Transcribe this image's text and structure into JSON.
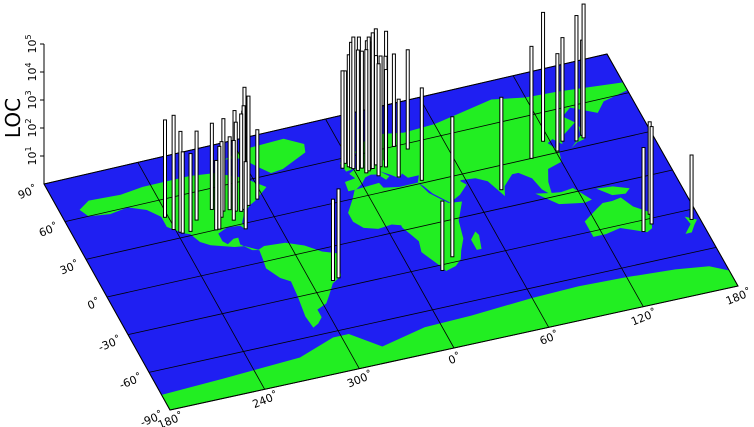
{
  "colors": {
    "ocean": "#1f1ff2",
    "land": "#22ee22",
    "grid": "#000000",
    "bars": "#000000"
  },
  "map": {
    "z_axis": {
      "title": "LOC",
      "ticks": [
        {
          "base": "10",
          "exp": "1"
        },
        {
          "base": "10",
          "exp": "2"
        },
        {
          "base": "10",
          "exp": "3"
        },
        {
          "base": "10",
          "exp": "4"
        },
        {
          "base": "10",
          "exp": "5"
        }
      ]
    },
    "lat_labels": [
      "90˚",
      "60˚",
      "30˚",
      "0˚",
      "-30˚",
      "-60˚",
      "-90˚"
    ],
    "lon_labels": [
      "180˚",
      "240˚",
      "300˚",
      "0˚",
      "60˚",
      "120˚",
      "180˚"
    ]
  },
  "chart_data": {
    "type": "3d-bar-map",
    "zlabel": "LOC",
    "zscale": "log",
    "zlim": [
      1,
      100000
    ],
    "points": [
      {
        "lon": -122,
        "lat": 47,
        "loc": 3000
      },
      {
        "lon": -121,
        "lat": 37,
        "loc": 12000
      },
      {
        "lon": -118,
        "lat": 34,
        "loc": 4000
      },
      {
        "lon": -117,
        "lat": 33,
        "loc": 800
      },
      {
        "lon": -112,
        "lat": 33,
        "loc": 600
      },
      {
        "lon": -105,
        "lat": 40,
        "loc": 1500
      },
      {
        "lon": -97,
        "lat": 30,
        "loc": 300
      },
      {
        "lon": -95,
        "lat": 30,
        "loc": 900
      },
      {
        "lon": -93,
        "lat": 45,
        "loc": 1200
      },
      {
        "lon": -90,
        "lat": 38,
        "loc": 500
      },
      {
        "lon": -87,
        "lat": 42,
        "loc": 2000
      },
      {
        "lon": -84,
        "lat": 34,
        "loc": 700
      },
      {
        "lon": -83,
        "lat": 42,
        "loc": 400
      },
      {
        "lon": -80,
        "lat": 26,
        "loc": 250
      },
      {
        "lon": -80,
        "lat": 40,
        "loc": 1500
      },
      {
        "lon": -79,
        "lat": 44,
        "loc": 2500
      },
      {
        "lon": -77,
        "lat": 39,
        "loc": 3000
      },
      {
        "lon": -75,
        "lat": 40,
        "loc": 5000
      },
      {
        "lon": -74,
        "lat": 41,
        "loc": 20000
      },
      {
        "lon": -73,
        "lat": 45,
        "loc": 1800
      },
      {
        "lon": -71,
        "lat": 42,
        "loc": 8000
      },
      {
        "lon": -64,
        "lat": 45,
        "loc": 300
      },
      {
        "lon": -43,
        "lat": -23,
        "loc": 1500
      },
      {
        "lon": -47,
        "lat": -24,
        "loc": 800
      },
      {
        "lon": -6,
        "lat": 53,
        "loc": 3000
      },
      {
        "lon": -3,
        "lat": 56,
        "loc": 2000
      },
      {
        "lon": -2,
        "lat": 53,
        "loc": 10000
      },
      {
        "lon": -1,
        "lat": 52,
        "loc": 30000
      },
      {
        "lon": 0,
        "lat": 51,
        "loc": 50000
      },
      {
        "lon": 2,
        "lat": 49,
        "loc": 20000
      },
      {
        "lon": 4,
        "lat": 52,
        "loc": 40000
      },
      {
        "lon": 5,
        "lat": 50,
        "loc": 15000
      },
      {
        "lon": 6,
        "lat": 46,
        "loc": 25000
      },
      {
        "lon": 8,
        "lat": 47,
        "loc": 60000
      },
      {
        "lon": 9,
        "lat": 48,
        "loc": 35000
      },
      {
        "lon": 10,
        "lat": 54,
        "loc": 20000
      },
      {
        "lon": 11,
        "lat": 48,
        "loc": 70000
      },
      {
        "lon": 12,
        "lat": 42,
        "loc": 10000
      },
      {
        "lon": 13,
        "lat": 52,
        "loc": 40000
      },
      {
        "lon": 14,
        "lat": 50,
        "loc": 8000
      },
      {
        "lon": 16,
        "lat": 48,
        "loc": 9000
      },
      {
        "lon": 18,
        "lat": 59,
        "loc": 25000
      },
      {
        "lon": 19,
        "lat": 47,
        "loc": 3000
      },
      {
        "lon": 21,
        "lat": 52,
        "loc": 5000
      },
      {
        "lon": 23,
        "lat": 38,
        "loc": 600
      },
      {
        "lon": 25,
        "lat": 60,
        "loc": 15000
      },
      {
        "lon": 30,
        "lat": 60,
        "loc": 2000
      },
      {
        "lon": 37,
        "lat": 56,
        "loc": 3500
      },
      {
        "lon": 35,
        "lat": 32,
        "loc": 2000
      },
      {
        "lon": 18,
        "lat": -34,
        "loc": 300
      },
      {
        "lon": 28,
        "lat": -26,
        "loc": 100000
      },
      {
        "lon": 77,
        "lat": 13,
        "loc": 2000
      },
      {
        "lon": 104,
        "lat": 30,
        "loc": 10000
      },
      {
        "lon": 116,
        "lat": 40,
        "loc": 40000
      },
      {
        "lon": 121,
        "lat": 31,
        "loc": 3000
      },
      {
        "lon": 127,
        "lat": 37,
        "loc": 5000
      },
      {
        "lon": 135,
        "lat": 35,
        "loc": 30000
      },
      {
        "lon": 140,
        "lat": 36,
        "loc": 60000
      },
      {
        "lon": 140,
        "lat": 38,
        "loc": 2500
      },
      {
        "lon": 144,
        "lat": -38,
        "loc": 1000
      },
      {
        "lon": 151,
        "lat": -34,
        "loc": 3000
      },
      {
        "lon": 153,
        "lat": -27,
        "loc": 2000
      },
      {
        "lon": 175,
        "lat": -37,
        "loc": 200
      }
    ]
  }
}
